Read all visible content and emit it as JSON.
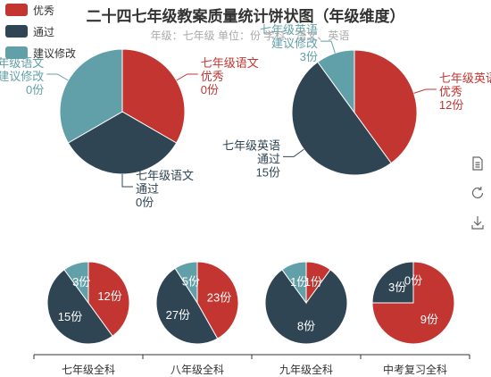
{
  "chart_data": {
    "type": "pie",
    "title": "二十四七年级教案质量统计饼状图（年级维度）",
    "subtitle": "年级：七年级     单位：份     学科：语文、英语",
    "legend": {
      "placement": "top-left",
      "items": [
        {
          "name": "优秀",
          "color": "#c23531"
        },
        {
          "name": "通过",
          "color": "#2f4554"
        },
        {
          "name": "建议修改",
          "color": "#61a0a8"
        }
      ]
    },
    "big_pies": [
      {
        "subject": "七年级语文",
        "slices": [
          {
            "name": "优秀",
            "value": 0
          },
          {
            "name": "通过",
            "value": 0
          },
          {
            "name": "建议修改",
            "value": 0
          }
        ]
      },
      {
        "subject": "七年级英语",
        "slices": [
          {
            "name": "优秀",
            "value": 12
          },
          {
            "name": "通过",
            "value": 15
          },
          {
            "name": "建议修改",
            "value": 3
          }
        ]
      }
    ],
    "small_pies": [
      {
        "category": "七年级全科",
        "values": [
          12,
          15,
          3
        ]
      },
      {
        "category": "八年级全科",
        "values": [
          23,
          27,
          5
        ]
      },
      {
        "category": "九年级全科",
        "values": [
          1,
          8,
          1
        ]
      },
      {
        "category": "中考复习全科",
        "values": [
          9,
          3,
          0
        ]
      }
    ],
    "unit": "份"
  },
  "toolbox": {
    "icons": [
      "data-view-icon",
      "restore-icon",
      "save-image-icon"
    ]
  }
}
